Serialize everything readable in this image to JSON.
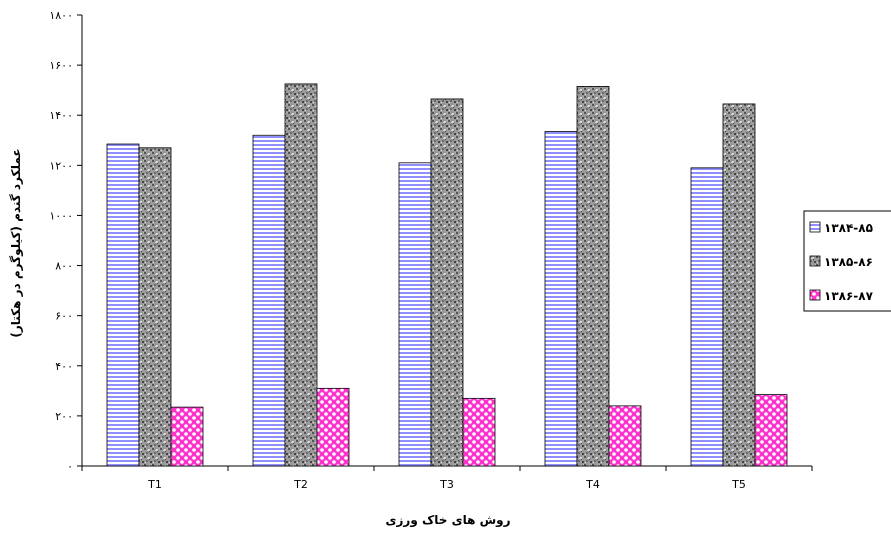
{
  "chart_data": {
    "type": "bar",
    "title": "",
    "xlabel": "روش های خاک ورزی",
    "ylabel": "عملکرد گندم (کیلوگرم در هکتار)",
    "categories": [
      "T1",
      "T2",
      "T3",
      "T4",
      "T5"
    ],
    "ylim": [
      0,
      1800
    ],
    "yticks": [
      0,
      200,
      400,
      600,
      800,
      1000,
      1200,
      1400,
      1600,
      1800
    ],
    "ytick_labels": [
      "۰",
      "۲۰۰",
      "۴۰۰",
      "۶۰۰",
      "۸۰۰",
      "۱۰۰۰",
      "۱۲۰۰",
      "۱۴۰۰",
      "۱۶۰۰",
      "۱۸۰۰"
    ],
    "grid": false,
    "legend_position": "right",
    "series": [
      {
        "name": "۱۳۸۴-۸۵",
        "values": [
          1285,
          1320,
          1210,
          1335,
          1190
        ],
        "color": "#9999ff",
        "pattern": "horizontal-stripes"
      },
      {
        "name": "۱۳۸۵-۸۶",
        "values": [
          1270,
          1525,
          1465,
          1515,
          1445
        ],
        "color": "#808080",
        "pattern": "granite"
      },
      {
        "name": "۱۳۸۶-۸۷",
        "values": [
          235,
          310,
          270,
          240,
          285
        ],
        "color": "#ff33cc",
        "pattern": "dots"
      }
    ]
  }
}
